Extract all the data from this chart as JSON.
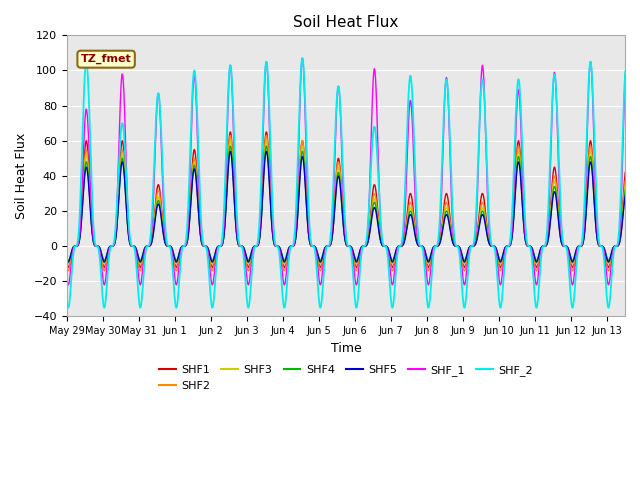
{
  "title": "Soil Heat Flux",
  "xlabel": "Time",
  "ylabel": "Soil Heat Flux",
  "ylim": [
    -40,
    120
  ],
  "yticks": [
    -40,
    -20,
    0,
    20,
    40,
    60,
    80,
    100,
    120
  ],
  "x_tick_labels": [
    "May 29",
    "May 30",
    "May 31",
    "Jun 1",
    "Jun 2",
    "Jun 3",
    "Jun 4",
    "Jun 5",
    "Jun 6",
    "Jun 7",
    "Jun 8",
    "Jun 9",
    "Jun 10",
    "Jun 11",
    "Jun 12",
    "Jun 13"
  ],
  "series_colors": {
    "SHF1": "#dd0000",
    "SHF2": "#ff8800",
    "SHF3": "#cccc00",
    "SHF4": "#00bb00",
    "SHF5": "#0000cc",
    "SHF_1": "#ff00ff",
    "SHF_2": "#00eeee"
  },
  "annotation_text": "TZ_fmet",
  "bg_color": "#e8e8e8",
  "title_fontsize": 11,
  "legend_labels": [
    "SHF1",
    "SHF2",
    "SHF3",
    "SHF4",
    "SHF5",
    "SHF_1",
    "SHF_2"
  ],
  "shf1_day_amps": [
    60,
    60,
    35,
    55,
    65,
    65,
    60,
    50,
    35,
    30,
    30,
    30,
    60,
    45,
    60,
    45
  ],
  "shf2_day_amps": [
    55,
    55,
    32,
    50,
    63,
    63,
    60,
    48,
    30,
    25,
    25,
    25,
    57,
    40,
    57,
    40
  ],
  "shf3_day_amps": [
    52,
    52,
    28,
    48,
    60,
    60,
    57,
    45,
    27,
    22,
    22,
    22,
    54,
    37,
    54,
    37
  ],
  "shf4_day_amps": [
    48,
    50,
    26,
    46,
    57,
    57,
    54,
    42,
    25,
    20,
    20,
    20,
    51,
    34,
    51,
    34
  ],
  "shf5_day_amps": [
    45,
    48,
    24,
    44,
    54,
    54,
    51,
    40,
    22,
    18,
    18,
    18,
    48,
    31,
    48,
    31
  ],
  "shf_1_day_amps": [
    78,
    98,
    87,
    97,
    103,
    105,
    107,
    91,
    101,
    83,
    96,
    103,
    89,
    99,
    105,
    105
  ],
  "shf_2_day_amps": [
    105,
    70,
    87,
    100,
    103,
    105,
    107,
    91,
    68,
    97,
    95,
    95,
    95,
    98,
    105,
    105
  ],
  "shf1_night_amp": -12,
  "shf2_night_amp": -14,
  "shf3_night_amp": -10,
  "shf4_night_amp": -8,
  "shf5_night_amp": -9,
  "shf_1_night_amp": -22,
  "shf_2_night_amp": -35
}
